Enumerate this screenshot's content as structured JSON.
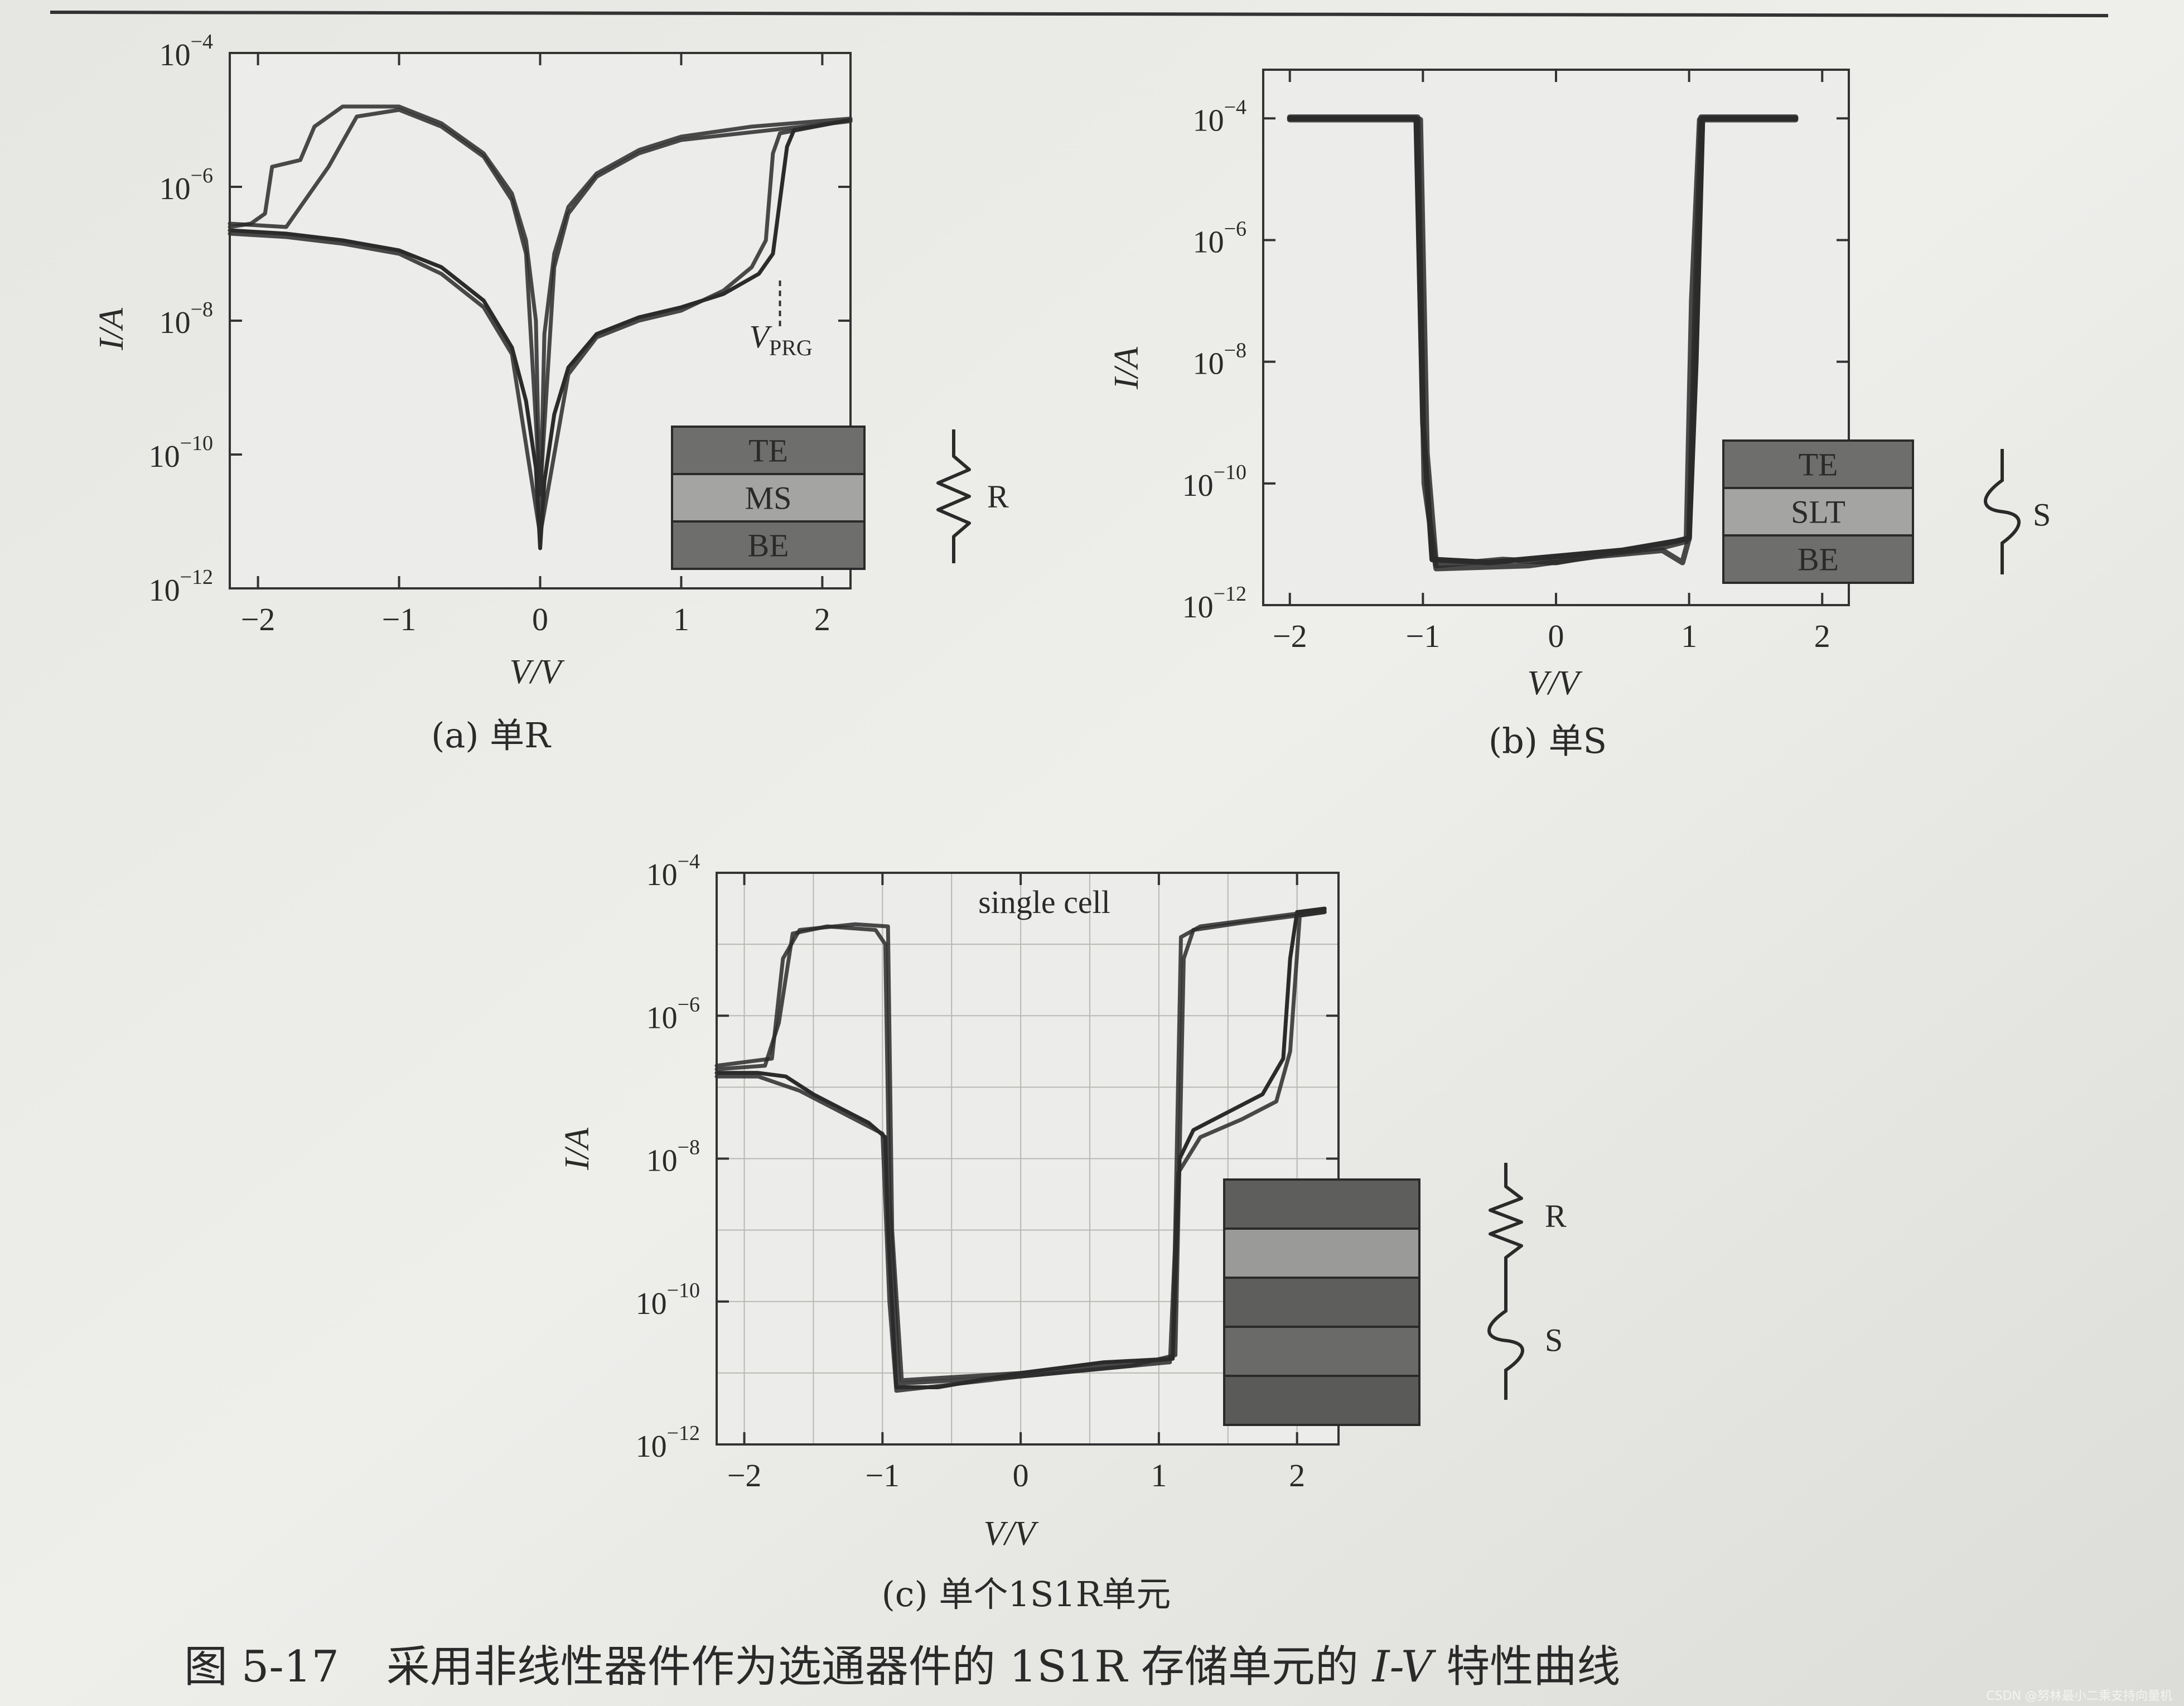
{
  "figure_caption": {
    "prefix": "图 5-17",
    "text_before": "采用非线性器件作为选通器件的 1S1R 存储单元的 ",
    "iv": "I-V",
    "text_after": " 特性曲线"
  },
  "watermark": "CSDN @努林最小二乘支持向量机",
  "chart_data": [
    {
      "id": "a",
      "type": "line",
      "caption": "(a) 单R",
      "xlabel": "V/V",
      "ylabel": "I/A",
      "xlim": [
        -2.2,
        2.2
      ],
      "ylim_log10": [
        -12,
        -4
      ],
      "xticks": [
        -2,
        -1,
        0,
        1,
        2
      ],
      "yticks_log10": [
        -12,
        -10,
        -8,
        -6,
        -4
      ],
      "log_y": true,
      "grid": false,
      "annotation": {
        "label_main": "V",
        "label_sub": "PRG",
        "x": 1.7
      },
      "stack_layers": [
        "TE",
        "MS",
        "BE"
      ],
      "symbol": {
        "type": "resistor",
        "label": "R"
      },
      "series": [
        {
          "points": [
            [
              -2.2,
              -6.65
            ],
            [
              -1.8,
              -6.7
            ],
            [
              -1.4,
              -6.8
            ],
            [
              -1.0,
              -6.95
            ],
            [
              -0.7,
              -7.2
            ],
            [
              -0.4,
              -7.7
            ],
            [
              -0.2,
              -8.4
            ],
            [
              -0.1,
              -9.2
            ],
            [
              -0.03,
              -10.2
            ],
            [
              0,
              -11.4
            ],
            [
              0.03,
              -10.4
            ],
            [
              0.1,
              -9.4
            ],
            [
              0.2,
              -8.7
            ],
            [
              0.4,
              -8.2
            ],
            [
              0.7,
              -7.95
            ],
            [
              1.0,
              -7.8
            ],
            [
              1.3,
              -7.6
            ],
            [
              1.55,
              -7.3
            ],
            [
              1.65,
              -7.0
            ],
            [
              1.7,
              -6.2
            ],
            [
              1.75,
              -5.4
            ],
            [
              1.8,
              -5.15
            ],
            [
              2.2,
              -5.0
            ]
          ]
        },
        {
          "points": [
            [
              -2.2,
              -6.6
            ],
            [
              -2.05,
              -6.55
            ],
            [
              -1.95,
              -6.4
            ],
            [
              -1.9,
              -5.7
            ],
            [
              -1.7,
              -5.6
            ],
            [
              -1.6,
              -5.1
            ],
            [
              -1.4,
              -4.8
            ],
            [
              -1.0,
              -4.8
            ],
            [
              -0.7,
              -5.05
            ],
            [
              -0.4,
              -5.5
            ],
            [
              -0.2,
              -6.1
            ],
            [
              -0.1,
              -6.8
            ],
            [
              -0.03,
              -8.0
            ],
            [
              0,
              -11.0
            ],
            [
              0.03,
              -8.2
            ],
            [
              0.1,
              -7.0
            ],
            [
              0.2,
              -6.3
            ],
            [
              0.4,
              -5.8
            ],
            [
              0.7,
              -5.45
            ],
            [
              1.0,
              -5.25
            ],
            [
              1.5,
              -5.1
            ],
            [
              2.2,
              -4.98
            ]
          ]
        },
        {
          "points": [
            [
              -2.2,
              -6.55
            ],
            [
              -1.8,
              -6.6
            ],
            [
              -1.5,
              -5.7
            ],
            [
              -1.3,
              -4.95
            ],
            [
              -1.0,
              -4.85
            ],
            [
              -0.7,
              -5.1
            ],
            [
              -0.4,
              -5.55
            ],
            [
              -0.2,
              -6.2
            ],
            [
              -0.1,
              -7.0
            ],
            [
              0,
              -10.6
            ],
            [
              0.1,
              -7.2
            ],
            [
              0.2,
              -6.4
            ],
            [
              0.4,
              -5.85
            ],
            [
              0.7,
              -5.5
            ],
            [
              1.0,
              -5.3
            ],
            [
              2.2,
              -5.02
            ]
          ]
        },
        {
          "points": [
            [
              -2.2,
              -6.7
            ],
            [
              -1.8,
              -6.75
            ],
            [
              -1.4,
              -6.85
            ],
            [
              -1.0,
              -7.0
            ],
            [
              -0.7,
              -7.3
            ],
            [
              -0.4,
              -7.8
            ],
            [
              -0.2,
              -8.5
            ],
            [
              0,
              -11.2
            ],
            [
              0.2,
              -8.8
            ],
            [
              0.4,
              -8.25
            ],
            [
              0.7,
              -8.0
            ],
            [
              1.0,
              -7.85
            ],
            [
              1.3,
              -7.55
            ],
            [
              1.5,
              -7.2
            ],
            [
              1.6,
              -6.8
            ],
            [
              1.65,
              -5.5
            ],
            [
              1.7,
              -5.2
            ],
            [
              2.2,
              -5.0
            ]
          ]
        }
      ]
    },
    {
      "id": "b",
      "type": "line",
      "caption": "(b) 单S",
      "xlabel": "V/V",
      "ylabel": "I/A",
      "xlim": [
        -2.2,
        2.2
      ],
      "ylim_log10": [
        -12,
        -3.2
      ],
      "xticks": [
        -2,
        -1,
        0,
        1,
        2
      ],
      "yticks_log10": [
        -12,
        -10,
        -8,
        -6,
        -4
      ],
      "log_y": true,
      "grid": false,
      "stack_layers": [
        "TE",
        "SLT",
        "BE"
      ],
      "symbol": {
        "type": "switch",
        "label": "S"
      },
      "series": [
        {
          "points": [
            [
              -2.0,
              -4.0
            ],
            [
              -1.05,
              -4.0
            ],
            [
              -1.0,
              -9.0
            ],
            [
              -0.93,
              -11.25
            ],
            [
              -0.5,
              -11.3
            ],
            [
              0,
              -11.2
            ],
            [
              0.5,
              -11.1
            ],
            [
              0.9,
              -10.95
            ],
            [
              1.0,
              -10.9
            ],
            [
              1.05,
              -8.0
            ],
            [
              1.1,
              -4.0
            ],
            [
              1.8,
              -4.0
            ]
          ]
        },
        {
          "points": [
            [
              -2.0,
              -4.02
            ],
            [
              -1.02,
              -4.02
            ],
            [
              -0.97,
              -9.5
            ],
            [
              -0.9,
              -11.35
            ],
            [
              -0.4,
              -11.25
            ],
            [
              0,
              -11.3
            ],
            [
              0.4,
              -11.15
            ],
            [
              0.8,
              -11.05
            ],
            [
              0.98,
              -10.95
            ],
            [
              1.02,
              -7.0
            ],
            [
              1.08,
              -4.02
            ],
            [
              1.8,
              -4.02
            ]
          ]
        },
        {
          "points": [
            [
              -2.0,
              -3.98
            ],
            [
              -1.04,
              -3.98
            ],
            [
              -0.99,
              -10.0
            ],
            [
              -0.9,
              -11.4
            ],
            [
              -0.2,
              -11.35
            ],
            [
              0.3,
              -11.2
            ],
            [
              0.8,
              -11.1
            ],
            [
              0.95,
              -11.3
            ],
            [
              1.0,
              -10.9
            ],
            [
              1.06,
              -6.0
            ],
            [
              1.09,
              -3.98
            ],
            [
              1.8,
              -3.98
            ]
          ]
        }
      ]
    },
    {
      "id": "c",
      "type": "line",
      "caption": "(c) 单个1S1R单元",
      "xlabel": "V/V",
      "ylabel": "I/A",
      "xlim": [
        -2.2,
        2.3
      ],
      "ylim_log10": [
        -12,
        -4
      ],
      "xticks": [
        -2,
        -1,
        0,
        1,
        2
      ],
      "yticks_log10": [
        -12,
        -10,
        -8,
        -6,
        -4
      ],
      "log_y": true,
      "grid": true,
      "inner_label": "single cell",
      "stack_layers": [
        "",
        "",
        "",
        "",
        ""
      ],
      "symbol": {
        "type": "resistor-switch",
        "label_r": "R",
        "label_s": "S"
      },
      "series": [
        {
          "points": [
            [
              -2.2,
              -6.8
            ],
            [
              -1.9,
              -6.8
            ],
            [
              -1.7,
              -6.85
            ],
            [
              -1.5,
              -7.1
            ],
            [
              -1.3,
              -7.3
            ],
            [
              -1.1,
              -7.5
            ],
            [
              -0.98,
              -7.7
            ],
            [
              -0.96,
              -9.0
            ],
            [
              -0.9,
              -11.2
            ],
            [
              -0.6,
              -11.2
            ],
            [
              0,
              -11.0
            ],
            [
              0.6,
              -10.85
            ],
            [
              1.1,
              -10.8
            ],
            [
              1.15,
              -8.0
            ],
            [
              1.25,
              -7.6
            ],
            [
              1.5,
              -7.35
            ],
            [
              1.75,
              -7.1
            ],
            [
              1.9,
              -6.6
            ],
            [
              1.95,
              -5.2
            ],
            [
              2.0,
              -4.55
            ],
            [
              2.2,
              -4.5
            ]
          ]
        },
        {
          "points": [
            [
              -2.2,
              -6.75
            ],
            [
              -1.85,
              -6.7
            ],
            [
              -1.75,
              -6.1
            ],
            [
              -1.65,
              -4.85
            ],
            [
              -1.4,
              -4.75
            ],
            [
              -1.05,
              -4.8
            ],
            [
              -0.98,
              -5.0
            ],
            [
              -0.95,
              -8.5
            ],
            [
              -0.88,
              -11.15
            ],
            [
              0,
              -11.05
            ],
            [
              0.8,
              -10.9
            ],
            [
              1.12,
              -10.75
            ],
            [
              1.18,
              -5.2
            ],
            [
              1.25,
              -4.8
            ],
            [
              1.6,
              -4.7
            ],
            [
              2.2,
              -4.55
            ]
          ]
        },
        {
          "points": [
            [
              -2.2,
              -6.7
            ],
            [
              -1.8,
              -6.6
            ],
            [
              -1.72,
              -5.2
            ],
            [
              -1.6,
              -4.8
            ],
            [
              -1.2,
              -4.72
            ],
            [
              -0.96,
              -4.75
            ],
            [
              -0.93,
              -9.0
            ],
            [
              -0.86,
              -11.1
            ],
            [
              0,
              -11.0
            ],
            [
              1.1,
              -10.8
            ],
            [
              1.16,
              -4.9
            ],
            [
              1.3,
              -4.75
            ],
            [
              2.2,
              -4.52
            ]
          ]
        },
        {
          "points": [
            [
              -2.2,
              -6.85
            ],
            [
              -1.9,
              -6.85
            ],
            [
              -1.6,
              -7.05
            ],
            [
              -1.3,
              -7.35
            ],
            [
              -1.0,
              -7.65
            ],
            [
              -0.95,
              -10.0
            ],
            [
              -0.9,
              -11.25
            ],
            [
              0,
              -11.05
            ],
            [
              1.08,
              -10.85
            ],
            [
              1.14,
              -8.2
            ],
            [
              1.3,
              -7.7
            ],
            [
              1.6,
              -7.45
            ],
            [
              1.85,
              -7.2
            ],
            [
              1.95,
              -6.5
            ],
            [
              2.02,
              -4.6
            ],
            [
              2.2,
              -4.55
            ]
          ]
        }
      ]
    }
  ]
}
